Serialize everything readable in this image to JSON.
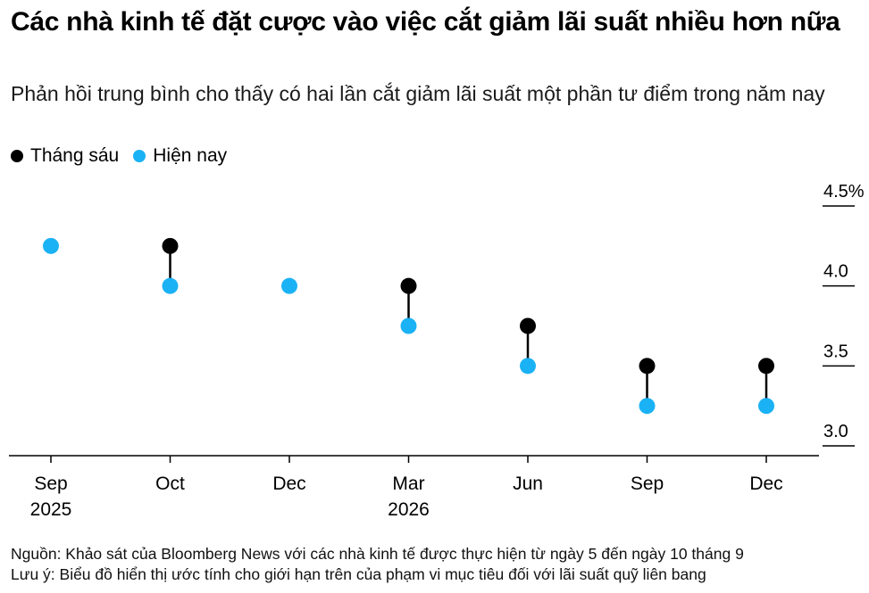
{
  "title": "Các nhà kinh tế đặt cược vào việc cắt giảm lãi suất nhiều hơn nữa",
  "subtitle": "Phản hồi trung bình cho thấy có hai lần cắt giảm lãi suất một phần tư điểm trong năm nay",
  "colors": {
    "june": "#000000",
    "now": "#1ab2f5",
    "axis": "#000000",
    "connector": "#000000"
  },
  "chart_data": {
    "type": "scatter",
    "categories": [
      "Sep\n2025",
      "Oct",
      "Dec",
      "Mar\n2026",
      "Jun",
      "Sep",
      "Dec"
    ],
    "series": [
      {
        "name": "Tháng sáu",
        "color": "#000000",
        "values": [
          null,
          4.25,
          null,
          4.0,
          3.75,
          3.5,
          3.5
        ]
      },
      {
        "name": "Hiện nay",
        "color": "#1ab2f5",
        "values": [
          4.25,
          4.0,
          4.0,
          3.75,
          3.5,
          3.25,
          3.25
        ]
      }
    ],
    "y_ticks": [
      {
        "value": 4.5,
        "label": "4.5%"
      },
      {
        "value": 4.0,
        "label": "4.0"
      },
      {
        "value": 3.5,
        "label": "3.5"
      },
      {
        "value": 3.0,
        "label": "3.0"
      }
    ],
    "ylim": [
      2.95,
      4.55
    ],
    "legend_position": "top-left",
    "grid": false
  },
  "footer": {
    "source": "Nguồn: Khảo sát của Bloomberg News với các nhà kinh tế được thực hiện từ ngày 5 đến ngày 10 tháng 9",
    "note": "Lưu ý: Biểu đồ hiển thị ước tính cho giới hạn trên của phạm vi mục tiêu đối với lãi suất quỹ liên bang"
  }
}
